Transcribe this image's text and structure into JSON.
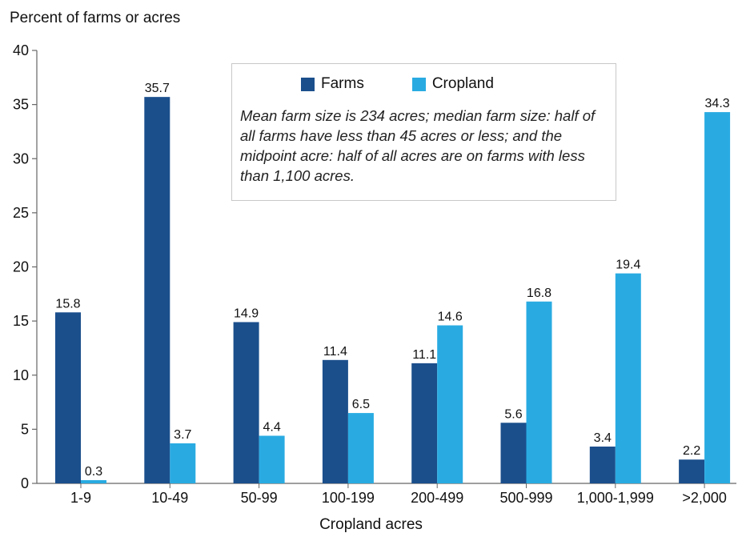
{
  "chart_data": {
    "type": "bar",
    "title": "",
    "ylabel": "Percent of farms or acres",
    "xlabel": "Cropland acres",
    "ylim": [
      0,
      40
    ],
    "yticks": [
      0,
      5,
      10,
      15,
      20,
      25,
      30,
      35,
      40
    ],
    "categories": [
      "1-9",
      "10-49",
      "50-99",
      "100-199",
      "200-499",
      "500-999",
      "1,000-1,999",
      ">2,000"
    ],
    "series": [
      {
        "name": "Farms",
        "color": "#1b4f8c",
        "values": [
          15.8,
          35.7,
          14.9,
          11.4,
          11.1,
          5.6,
          3.4,
          2.2
        ],
        "labels": [
          "15.8",
          "35.7",
          "14.9",
          "11.4",
          "11.1",
          "5.6",
          "3.4",
          "2.2"
        ]
      },
      {
        "name": "Cropland",
        "color": "#29abe2",
        "values": [
          0.3,
          3.7,
          4.4,
          6.5,
          14.6,
          16.8,
          19.4,
          34.3
        ],
        "labels": [
          "0.3",
          "3.7",
          "4.4",
          "6.5",
          "14.6",
          "16.8",
          "19.4",
          "34.3"
        ]
      }
    ],
    "legend_placement": "top-center",
    "annotation": "Mean farm size is 234 acres;  median farm size: half of all farms have less than 45 acres or less; and the midpoint acre: half of all acres are on farms with less than 1,100 acres.",
    "grid": false
  }
}
